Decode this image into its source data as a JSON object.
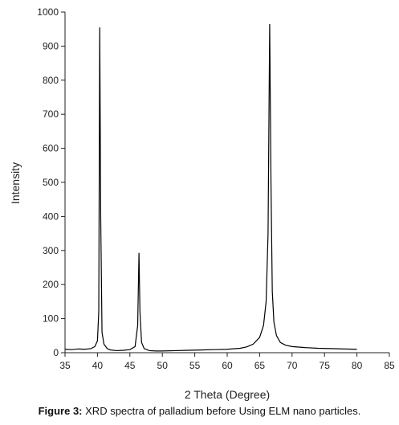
{
  "caption": {
    "label": "Figure 3:",
    "text": "XRD spectra of palladium before Using ELM nano particles."
  },
  "chart_data": {
    "type": "line",
    "title": "",
    "xlabel": "2 Theta (Degree)",
    "ylabel": "Intensity",
    "xlim": [
      35,
      85
    ],
    "ylim": [
      0,
      1000
    ],
    "xticks": [
      35,
      40,
      45,
      50,
      55,
      60,
      65,
      70,
      75,
      80,
      85
    ],
    "yticks": [
      0,
      100,
      200,
      300,
      400,
      500,
      600,
      700,
      800,
      900,
      1000
    ],
    "grid": false,
    "legend": "none",
    "line_color": "#000000",
    "series": [
      {
        "x": [
          35,
          36,
          37,
          38,
          39,
          39.6,
          40.0,
          40.2,
          40.35,
          40.5,
          40.7,
          41.0,
          41.5,
          42,
          43,
          44,
          45,
          45.8,
          46.2,
          46.4,
          46.55,
          46.8,
          47.2,
          48,
          49,
          50,
          52,
          54,
          56,
          58,
          60,
          62,
          63,
          64,
          65,
          65.6,
          66.0,
          66.3,
          66.55,
          66.75,
          66.95,
          67.2,
          67.6,
          68.2,
          69,
          70,
          72,
          74,
          76,
          78,
          80
        ],
        "y": [
          10,
          9,
          11,
          10,
          12,
          18,
          35,
          120,
          955,
          400,
          60,
          25,
          12,
          8,
          6,
          7,
          9,
          18,
          80,
          293,
          120,
          30,
          12,
          6,
          5,
          5,
          6,
          7,
          8,
          9,
          10,
          13,
          17,
          25,
          45,
          80,
          150,
          350,
          965,
          500,
          180,
          90,
          50,
          30,
          22,
          18,
          15,
          13,
          12,
          11,
          10
        ]
      }
    ]
  }
}
